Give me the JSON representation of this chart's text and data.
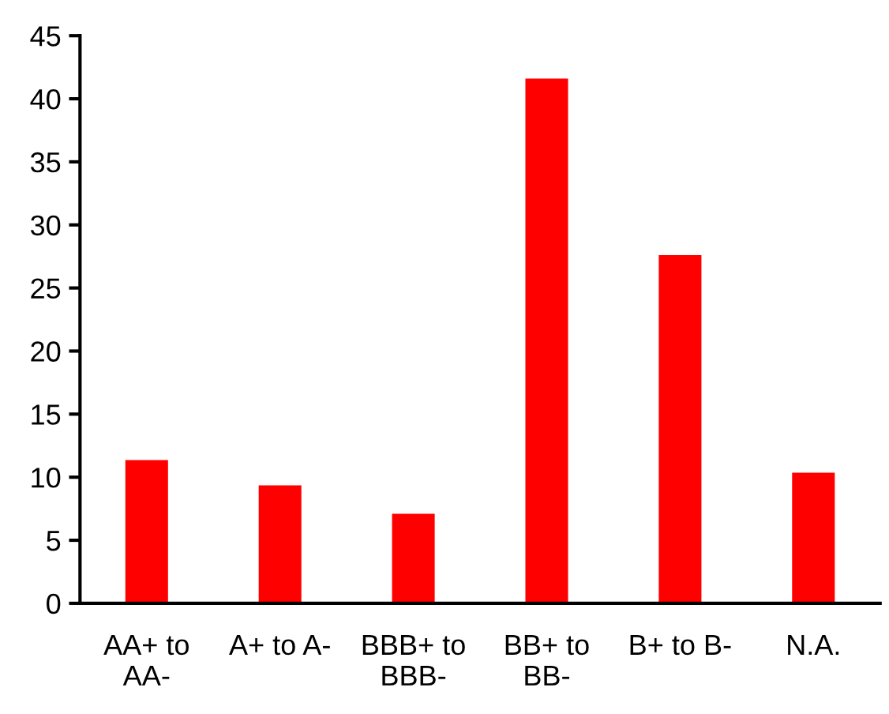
{
  "chart_data": {
    "type": "bar",
    "categories": [
      "AA+ to\nAA-",
      "A+ to A-",
      "BBB+ to\nBBB-",
      "BB+ to\nBB-",
      "B+ to B-",
      "N.A."
    ],
    "values": [
      11.35,
      9.35,
      7.1,
      41.6,
      27.6,
      10.35
    ],
    "color": "#ff0000",
    "ylim": [
      0,
      45
    ],
    "yticks": [
      0,
      5,
      10,
      15,
      20,
      25,
      30,
      35,
      40,
      45
    ],
    "grid": false
  }
}
